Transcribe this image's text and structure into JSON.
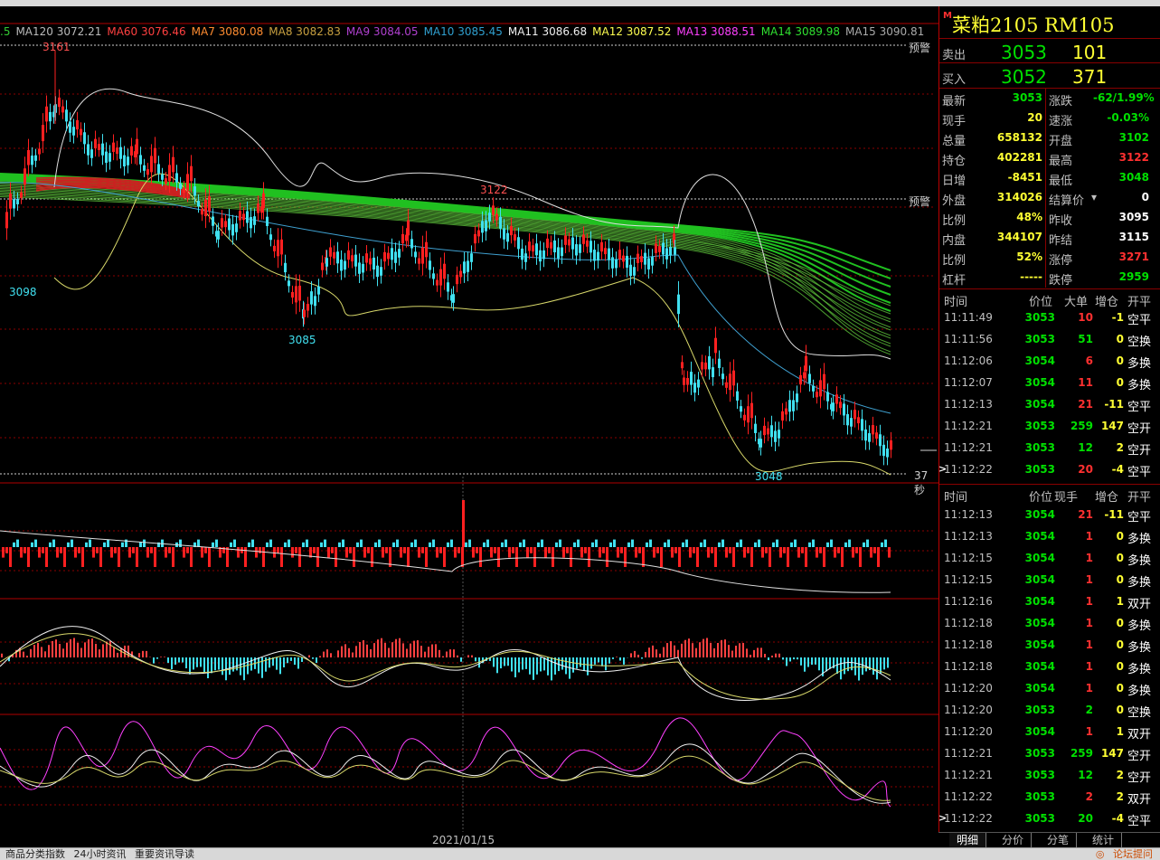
{
  "ma_legend": [
    {
      "label": ".5",
      "color": "#33cc33"
    },
    {
      "label": "MA120 3072.21",
      "color": "#bbbbbb"
    },
    {
      "label": "MA60 3076.46",
      "color": "#ff4040"
    },
    {
      "label": "MA7 3080.08",
      "color": "#ff8c30"
    },
    {
      "label": "MA8 3082.83",
      "color": "#c8a040"
    },
    {
      "label": "MA9 3084.05",
      "color": "#b040d0"
    },
    {
      "label": "MA10 3085.45",
      "color": "#30a0d0"
    },
    {
      "label": "MA11 3086.68",
      "color": "#f0f0f0"
    },
    {
      "label": "MA12 3087.52",
      "color": "#ffff50"
    },
    {
      "label": "MA13 3088.51",
      "color": "#ff40ff"
    },
    {
      "label": "MA14 3089.98",
      "color": "#30e030"
    },
    {
      "label": "MA15 3090.81",
      "color": "#aaaaaa"
    }
  ],
  "chart": {
    "high_label": "3161",
    "mid_high_label": "3122",
    "low_left_label": "3098",
    "low_mid_label": "3085",
    "low_right_label": "3048",
    "warn_label": "预警",
    "countdown": "37秒",
    "date_label": "2021/01/15"
  },
  "panel": {
    "badge": "M",
    "title": "菜粕2105  RM105",
    "sell": {
      "label": "卖出",
      "price": "3053",
      "volume": "101"
    },
    "buy": {
      "label": "买入",
      "price": "3052",
      "volume": "371"
    },
    "stats": [
      {
        "l1": "最新",
        "v1": "3053",
        "c1": "#00e000",
        "l2": "涨跌",
        "v2": "-62/1.99%",
        "c2": "#00e000"
      },
      {
        "l1": "现手",
        "v1": "20",
        "c1": "#ffff33",
        "l2": "速涨",
        "v2": "-0.03%",
        "c2": "#00e000"
      },
      {
        "l1": "总量",
        "v1": "658132",
        "c1": "#ffff33",
        "l2": "开盘",
        "v2": "3102",
        "c2": "#00e000"
      },
      {
        "l1": "持仓",
        "v1": "402281",
        "c1": "#ffff33",
        "l2": "最高",
        "v2": "3122",
        "c2": "#ff3030"
      },
      {
        "l1": "日增",
        "v1": "-8451",
        "c1": "#ffff33",
        "l2": "最低",
        "v2": "3048",
        "c2": "#00e000"
      },
      {
        "l1": "外盘",
        "v1": "314026",
        "c1": "#ffff33",
        "l2": "结算价",
        "v2": "0",
        "c2": "#ffffff"
      },
      {
        "l1": "比例",
        "v1": "48%",
        "c1": "#ffff33",
        "l2": "昨收",
        "v2": "3095",
        "c2": "#ffffff"
      },
      {
        "l1": "内盘",
        "v1": "344107",
        "c1": "#ffff33",
        "l2": "昨结",
        "v2": "3115",
        "c2": "#ffffff"
      },
      {
        "l1": "比例",
        "v1": "52%",
        "c1": "#ffff33",
        "l2": "涨停",
        "v2": "3271",
        "c2": "#ff3030"
      },
      {
        "l1": "杠杆",
        "v1": "-----",
        "c1": "#ffff33",
        "l2": "跌停",
        "v2": "2959",
        "c2": "#00e000"
      }
    ],
    "big_header": {
      "time": "时间",
      "price": "价位",
      "vol": "大单",
      "chg": "增仓",
      "type": "开平"
    },
    "big_trades": [
      {
        "time": "11:11:49",
        "price": "3053",
        "vol": "10",
        "chg": "-1",
        "type": "空平",
        "pc": "#00e000",
        "vc": "#ff3030",
        "cc": "#ffff33",
        "marker": ""
      },
      {
        "time": "11:11:56",
        "price": "3053",
        "vol": "51",
        "chg": "0",
        "type": "空换",
        "pc": "#00e000",
        "vc": "#00e000",
        "cc": "#ffff33",
        "marker": ""
      },
      {
        "time": "11:12:06",
        "price": "3054",
        "vol": "6",
        "chg": "0",
        "type": "多换",
        "pc": "#00e000",
        "vc": "#ff3030",
        "cc": "#ffff33",
        "marker": ""
      },
      {
        "time": "11:12:07",
        "price": "3054",
        "vol": "11",
        "chg": "0",
        "type": "多换",
        "pc": "#00e000",
        "vc": "#ff3030",
        "cc": "#ffff33",
        "marker": ""
      },
      {
        "time": "11:12:13",
        "price": "3054",
        "vol": "21",
        "chg": "-11",
        "type": "空平",
        "pc": "#00e000",
        "vc": "#ff3030",
        "cc": "#ffff33",
        "marker": ""
      },
      {
        "time": "11:12:21",
        "price": "3053",
        "vol": "259",
        "chg": "147",
        "type": "空开",
        "pc": "#00e000",
        "vc": "#00e000",
        "cc": "#ffff33",
        "marker": ""
      },
      {
        "time": "11:12:21",
        "price": "3053",
        "vol": "12",
        "chg": "2",
        "type": "空开",
        "pc": "#00e000",
        "vc": "#00e000",
        "cc": "#ffff33",
        "marker": ""
      },
      {
        "time": "11:12:22",
        "price": "3053",
        "vol": "20",
        "chg": "-4",
        "type": "空平",
        "pc": "#00e000",
        "vc": "#ff3030",
        "cc": "#ffff33",
        "marker": ">"
      }
    ],
    "tick_header": {
      "time": "时间",
      "price": "价位",
      "vol": "现手",
      "chg": "增仓",
      "type": "开平"
    },
    "ticks": [
      {
        "time": "11:12:13",
        "price": "3054",
        "vol": "21",
        "chg": "-11",
        "type": "空平",
        "vc": "#ff3030",
        "marker": ""
      },
      {
        "time": "11:12:13",
        "price": "3054",
        "vol": "1",
        "chg": "0",
        "type": "多换",
        "vc": "#ff3030",
        "marker": ""
      },
      {
        "time": "11:12:15",
        "price": "3054",
        "vol": "1",
        "chg": "0",
        "type": "多换",
        "vc": "#ff3030",
        "marker": ""
      },
      {
        "time": "11:12:15",
        "price": "3054",
        "vol": "1",
        "chg": "0",
        "type": "多换",
        "vc": "#ff3030",
        "marker": ""
      },
      {
        "time": "11:12:16",
        "price": "3054",
        "vol": "1",
        "chg": "1",
        "type": "双开",
        "vc": "#ff3030",
        "marker": ""
      },
      {
        "time": "11:12:18",
        "price": "3054",
        "vol": "1",
        "chg": "0",
        "type": "多换",
        "vc": "#ff3030",
        "marker": ""
      },
      {
        "time": "11:12:18",
        "price": "3054",
        "vol": "1",
        "chg": "0",
        "type": "多换",
        "vc": "#ff3030",
        "marker": ""
      },
      {
        "time": "11:12:18",
        "price": "3054",
        "vol": "1",
        "chg": "0",
        "type": "多换",
        "vc": "#ff3030",
        "marker": ""
      },
      {
        "time": "11:12:20",
        "price": "3054",
        "vol": "1",
        "chg": "0",
        "type": "多换",
        "vc": "#ff3030",
        "marker": ""
      },
      {
        "time": "11:12:20",
        "price": "3053",
        "vol": "2",
        "chg": "0",
        "type": "空换",
        "vc": "#00e000",
        "marker": ""
      },
      {
        "time": "11:12:20",
        "price": "3054",
        "vol": "1",
        "chg": "1",
        "type": "双开",
        "vc": "#ff3030",
        "marker": ""
      },
      {
        "time": "11:12:21",
        "price": "3053",
        "vol": "259",
        "chg": "147",
        "type": "空开",
        "vc": "#00e000",
        "marker": ""
      },
      {
        "time": "11:12:21",
        "price": "3053",
        "vol": "12",
        "chg": "2",
        "type": "空开",
        "vc": "#00e000",
        "marker": ""
      },
      {
        "time": "11:12:22",
        "price": "3053",
        "vol": "2",
        "chg": "2",
        "type": "双开",
        "vc": "#ff3030",
        "marker": ""
      },
      {
        "time": "11:12:22",
        "price": "3053",
        "vol": "20",
        "chg": "-4",
        "type": "空平",
        "vc": "#00e000",
        "marker": ">"
      }
    ],
    "tabs": [
      "明细",
      "分价",
      "分笔",
      "统计"
    ]
  },
  "status": {
    "items": [
      "商品分类指数",
      "24小时资讯",
      "重要资讯导读"
    ],
    "forum": "论坛提问"
  }
}
